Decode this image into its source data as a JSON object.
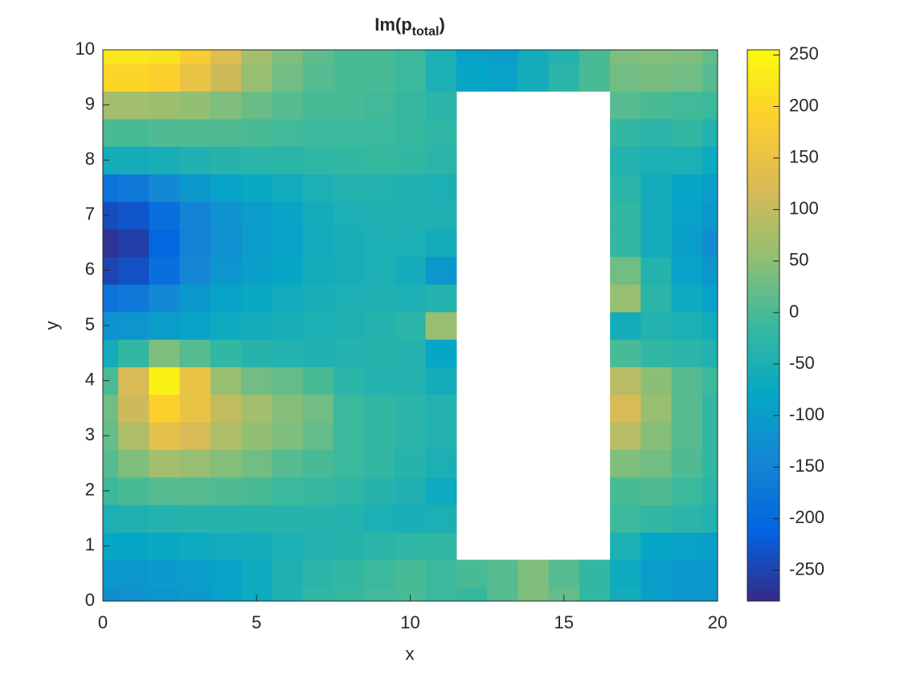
{
  "chart_data": {
    "type": "contourf",
    "title_parts": [
      "Im(p",
      "total",
      ")"
    ],
    "xlabel": "x",
    "ylabel": "y",
    "xlim": [
      0,
      20
    ],
    "ylim": [
      0,
      10
    ],
    "xticks": [
      0,
      5,
      10,
      15,
      20
    ],
    "yticks": [
      0,
      1,
      2,
      3,
      4,
      5,
      6,
      7,
      8,
      9,
      10
    ],
    "x": [
      0,
      1,
      2,
      3,
      4,
      5,
      6,
      7,
      8,
      9,
      10,
      11,
      12,
      13,
      14,
      15,
      16,
      17,
      18,
      19,
      20
    ],
    "y": [
      0,
      0.5,
      1,
      1.5,
      2,
      2.5,
      3,
      3.5,
      4,
      4.5,
      5,
      5.5,
      6,
      6.5,
      7,
      7.5,
      8,
      8.5,
      9,
      9.5,
      10
    ],
    "z": [
      [
        -130,
        -120,
        -115,
        -105,
        -90,
        -70,
        -45,
        -25,
        -15,
        -5,
        0,
        -10,
        -15,
        10,
        40,
        20,
        -20,
        -60,
        -95,
        -110,
        -110
      ],
      [
        -110,
        -110,
        -105,
        -100,
        -90,
        -70,
        -45,
        -30,
        -20,
        -10,
        0,
        -10,
        0,
        10,
        40,
        10,
        -20,
        -70,
        -100,
        -110,
        -110
      ],
      [
        -80,
        -80,
        -75,
        -70,
        -65,
        -60,
        -50,
        -40,
        -35,
        -30,
        -25,
        -20,
        null,
        null,
        null,
        null,
        null,
        -50,
        -80,
        -90,
        -100
      ],
      [
        -50,
        -45,
        -40,
        -35,
        -35,
        -35,
        -35,
        -35,
        -40,
        -50,
        -55,
        -50,
        null,
        null,
        null,
        null,
        null,
        -10,
        -20,
        -30,
        -40
      ],
      [
        -10,
        0,
        10,
        10,
        5,
        0,
        -10,
        -15,
        -25,
        -35,
        -45,
        -70,
        null,
        null,
        null,
        null,
        null,
        0,
        5,
        -10,
        -30
      ],
      [
        10,
        40,
        70,
        60,
        45,
        30,
        10,
        0,
        -10,
        -20,
        -35,
        -50,
        null,
        null,
        null,
        null,
        null,
        40,
        30,
        5,
        -20
      ],
      [
        20,
        80,
        140,
        120,
        80,
        55,
        40,
        20,
        -10,
        -20,
        -30,
        -40,
        null,
        null,
        null,
        null,
        null,
        90,
        45,
        10,
        -20
      ],
      [
        30,
        110,
        190,
        150,
        100,
        70,
        45,
        30,
        -10,
        -20,
        -30,
        -40,
        null,
        null,
        null,
        null,
        null,
        120,
        60,
        10,
        -20
      ],
      [
        0,
        120,
        240,
        150,
        60,
        30,
        20,
        0,
        -30,
        -40,
        -40,
        -60,
        null,
        null,
        null,
        null,
        null,
        90,
        50,
        10,
        -10
      ],
      [
        -60,
        -20,
        40,
        10,
        -20,
        -35,
        -40,
        -45,
        -40,
        -35,
        -40,
        -80,
        null,
        null,
        null,
        null,
        null,
        0,
        -20,
        -30,
        -40
      ],
      [
        -120,
        -115,
        -100,
        -85,
        -70,
        -60,
        -55,
        -50,
        -45,
        -40,
        -30,
        60,
        null,
        null,
        null,
        null,
        null,
        -60,
        -40,
        -50,
        -60
      ],
      [
        -180,
        -170,
        -140,
        -110,
        -90,
        -75,
        -65,
        -55,
        -50,
        -45,
        -50,
        -40,
        null,
        null,
        null,
        null,
        null,
        60,
        -30,
        -70,
        -90
      ],
      [
        -250,
        -235,
        -190,
        -145,
        -115,
        -95,
        -80,
        -60,
        -55,
        -50,
        -60,
        -110,
        null,
        null,
        null,
        null,
        null,
        30,
        -40,
        -90,
        -110
      ],
      [
        -270,
        -255,
        -205,
        -155,
        -125,
        -100,
        -90,
        -65,
        -55,
        -50,
        -50,
        -60,
        null,
        null,
        null,
        null,
        null,
        -20,
        -60,
        -95,
        -130
      ],
      [
        -240,
        -230,
        -190,
        -150,
        -120,
        -100,
        -85,
        -60,
        -50,
        -45,
        -45,
        -45,
        null,
        null,
        null,
        null,
        null,
        -20,
        -60,
        -90,
        -110
      ],
      [
        -180,
        -170,
        -140,
        -110,
        -90,
        -75,
        -65,
        -50,
        -40,
        -40,
        -45,
        -50,
        null,
        null,
        null,
        null,
        null,
        -30,
        -60,
        -80,
        -100
      ],
      [
        -60,
        -60,
        -55,
        -45,
        -35,
        -30,
        -30,
        -25,
        -20,
        -15,
        -20,
        -30,
        null,
        null,
        null,
        null,
        null,
        -40,
        -50,
        -50,
        -70
      ],
      [
        0,
        0,
        5,
        5,
        5,
        0,
        -5,
        -10,
        -10,
        -10,
        -15,
        -25,
        null,
        null,
        null,
        null,
        null,
        -20,
        -30,
        -20,
        -40
      ],
      [
        70,
        70,
        65,
        55,
        40,
        25,
        10,
        0,
        0,
        -5,
        -15,
        -30,
        null,
        null,
        null,
        null,
        null,
        10,
        0,
        -5,
        -10
      ],
      [
        200,
        200,
        190,
        150,
        110,
        60,
        30,
        10,
        0,
        0,
        -10,
        -50,
        -80,
        -90,
        -60,
        -30,
        0,
        30,
        35,
        30,
        10
      ],
      [
        225,
        225,
        220,
        180,
        130,
        70,
        40,
        15,
        0,
        0,
        -10,
        -50,
        -90,
        -100,
        -60,
        -40,
        0,
        40,
        45,
        40,
        20
      ]
    ],
    "clim": [
      -280,
      255
    ],
    "cticks": [
      -250,
      -200,
      -150,
      -100,
      -50,
      0,
      50,
      100,
      150,
      200,
      250
    ],
    "colormap": [
      "#352a87",
      "#0363e1",
      "#1485d4",
      "#06a7c6",
      "#38b99e",
      "#92bf73",
      "#d9ba56",
      "#fcce2e",
      "#f9fb0e"
    ]
  }
}
